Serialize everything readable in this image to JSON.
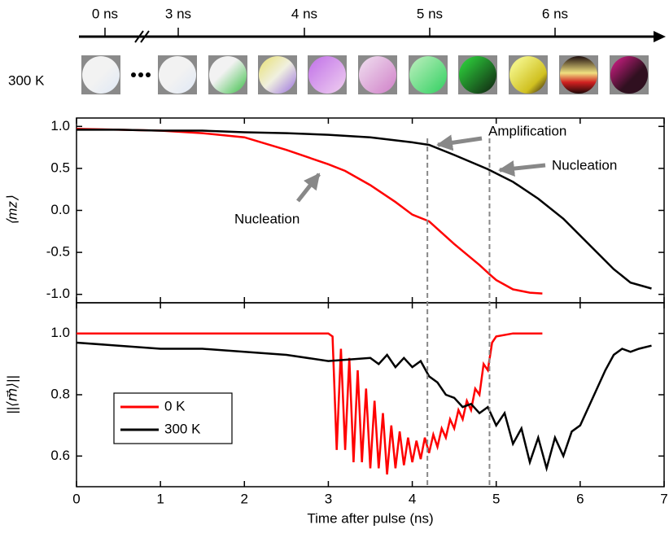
{
  "timeline": {
    "ticks": [
      "0 ns",
      "3 ns",
      "4 ns",
      "5 ns",
      "6 ns"
    ],
    "row_label": "300 K"
  },
  "chart_data": [
    {
      "type": "line",
      "ylabel": "⟨mz⟩",
      "xlim": [
        0,
        7
      ],
      "ylim": [
        -1.1,
        1.1
      ],
      "yticks": [
        {
          "value": 1.0,
          "label": "1.0"
        },
        {
          "value": 0.5,
          "label": "0.5"
        },
        {
          "value": 0,
          "label": "0.0"
        },
        {
          "value": -0.5,
          "label": "-0.5"
        },
        {
          "value": -1.0,
          "label": "-1.0"
        }
      ],
      "vlines": [
        4.18,
        4.92
      ],
      "annotations": [
        "Amplification",
        "Nucleation",
        "Nucleation"
      ],
      "series": [
        {
          "name": "0 K",
          "color": "#ff0000",
          "x": [
            0,
            0.5,
            1,
            1.5,
            2,
            2.5,
            3.0,
            3.2,
            3.5,
            3.8,
            4.0,
            4.2,
            4.5,
            4.8,
            4.92,
            5.0,
            5.2,
            5.4,
            5.55
          ],
          "values": [
            0.97,
            0.96,
            0.95,
            0.92,
            0.87,
            0.72,
            0.55,
            0.47,
            0.3,
            0.1,
            -0.05,
            -0.13,
            -0.4,
            -0.65,
            -0.76,
            -0.83,
            -0.94,
            -0.98,
            -0.99
          ]
        },
        {
          "name": "300 K",
          "color": "#000000",
          "x": [
            0,
            0.5,
            1,
            1.5,
            2,
            2.5,
            3,
            3.5,
            4,
            4.2,
            4.5,
            4.9,
            5.2,
            5.5,
            5.8,
            6.0,
            6.2,
            6.4,
            6.6,
            6.85
          ],
          "values": [
            0.96,
            0.96,
            0.95,
            0.95,
            0.93,
            0.92,
            0.9,
            0.87,
            0.81,
            0.78,
            0.66,
            0.49,
            0.34,
            0.14,
            -0.1,
            -0.3,
            -0.5,
            -0.7,
            -0.86,
            -0.93
          ]
        }
      ]
    },
    {
      "type": "line",
      "ylabel": "||⟨m⃗⟩||",
      "xlabel": "Time after pulse (ns)",
      "xlim": [
        0,
        7
      ],
      "ylim": [
        0.5,
        1.1
      ],
      "xticks": [
        0,
        1,
        2,
        3,
        4,
        5,
        6,
        7
      ],
      "yticks": [
        {
          "value": 1.0,
          "label": "1.0"
        },
        {
          "value": 0.8,
          "label": "0.8"
        },
        {
          "value": 0.6,
          "label": "0.6"
        }
      ],
      "legend": "lower-left",
      "series": [
        {
          "name": "0 K",
          "color": "#ff0000",
          "x": [
            0,
            1,
            2,
            3,
            3.05,
            3.1,
            3.15,
            3.2,
            3.25,
            3.3,
            3.35,
            3.4,
            3.45,
            3.5,
            3.55,
            3.6,
            3.65,
            3.7,
            3.75,
            3.8,
            3.85,
            3.9,
            3.95,
            4.0,
            4.05,
            4.1,
            4.15,
            4.2,
            4.25,
            4.3,
            4.35,
            4.4,
            4.45,
            4.5,
            4.55,
            4.6,
            4.65,
            4.7,
            4.75,
            4.8,
            4.85,
            4.9,
            4.95,
            5.0,
            5.2,
            5.55
          ],
          "values": [
            1.0,
            1.0,
            1.0,
            1.0,
            0.99,
            0.62,
            0.95,
            0.62,
            0.92,
            0.58,
            0.88,
            0.58,
            0.82,
            0.56,
            0.78,
            0.56,
            0.74,
            0.54,
            0.7,
            0.56,
            0.68,
            0.57,
            0.66,
            0.58,
            0.65,
            0.59,
            0.66,
            0.61,
            0.67,
            0.63,
            0.69,
            0.66,
            0.72,
            0.69,
            0.75,
            0.72,
            0.78,
            0.75,
            0.82,
            0.8,
            0.9,
            0.88,
            0.97,
            0.99,
            1.0,
            1.0
          ]
        },
        {
          "name": "300 K",
          "color": "#000000",
          "x": [
            0,
            0.5,
            1,
            1.5,
            2,
            2.5,
            3,
            3.5,
            3.6,
            3.7,
            3.8,
            3.9,
            4.0,
            4.1,
            4.2,
            4.3,
            4.4,
            4.5,
            4.6,
            4.7,
            4.8,
            4.9,
            5.0,
            5.1,
            5.2,
            5.3,
            5.4,
            5.5,
            5.6,
            5.7,
            5.8,
            5.9,
            6.0,
            6.1,
            6.2,
            6.3,
            6.4,
            6.5,
            6.6,
            6.7,
            6.85
          ],
          "values": [
            0.97,
            0.96,
            0.95,
            0.95,
            0.94,
            0.93,
            0.91,
            0.92,
            0.9,
            0.93,
            0.89,
            0.92,
            0.89,
            0.91,
            0.86,
            0.84,
            0.8,
            0.79,
            0.76,
            0.77,
            0.74,
            0.76,
            0.7,
            0.74,
            0.64,
            0.69,
            0.58,
            0.66,
            0.56,
            0.66,
            0.6,
            0.68,
            0.7,
            0.76,
            0.82,
            0.88,
            0.93,
            0.95,
            0.94,
            0.95,
            0.96
          ]
        }
      ]
    }
  ]
}
